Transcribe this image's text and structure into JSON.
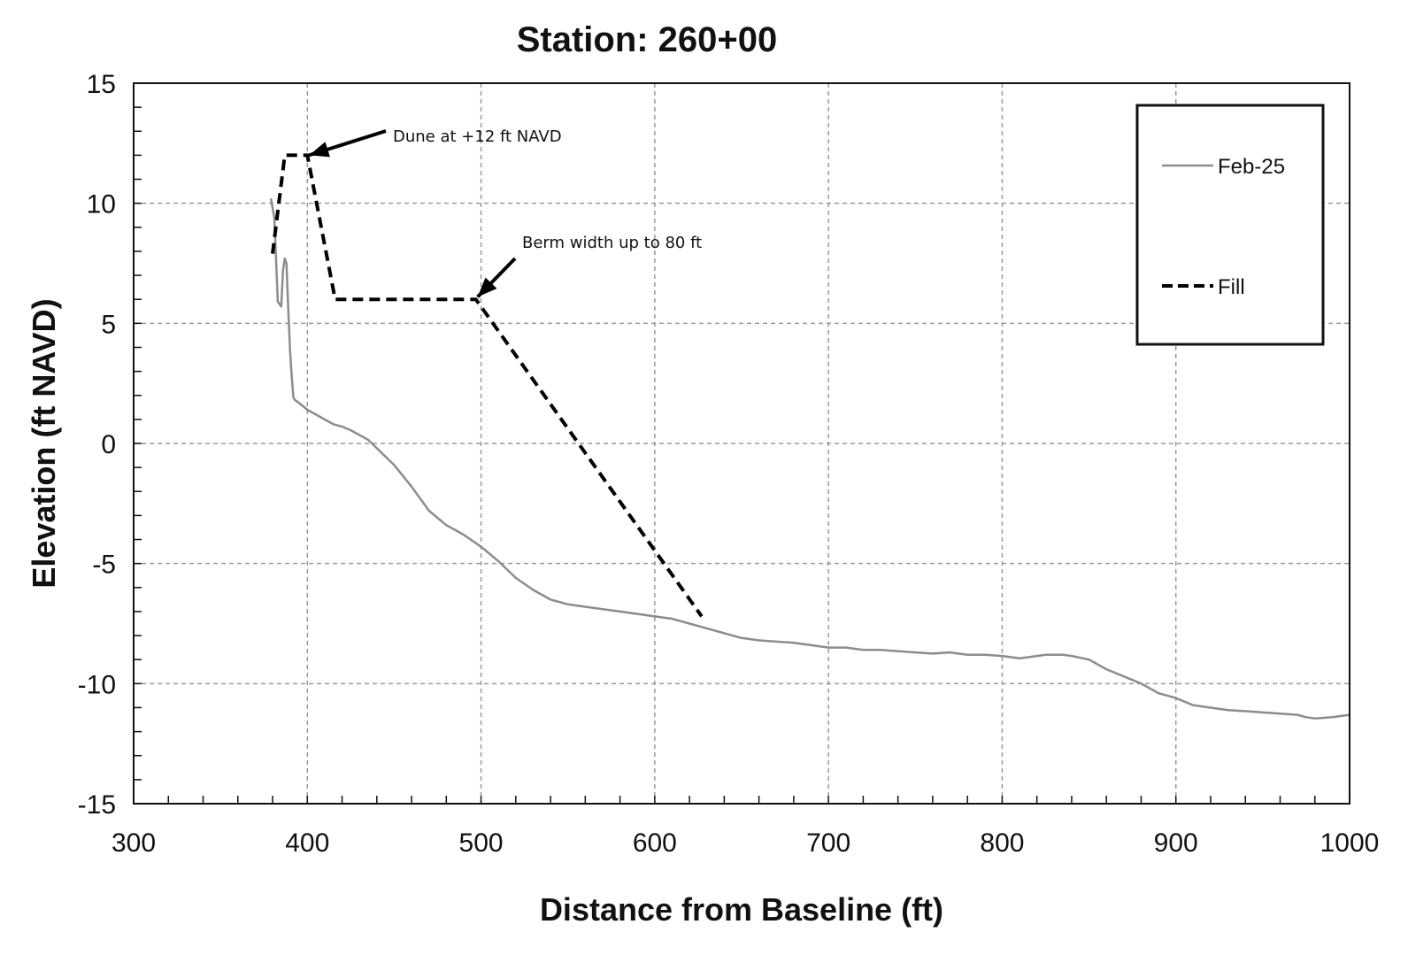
{
  "chart_data": {
    "type": "line",
    "title": "Station: 260+00",
    "xlabel": "Distance from Baseline (ft)",
    "ylabel": "Elevation (ft NAVD)",
    "xlim": [
      300,
      1000
    ],
    "ylim": [
      -15,
      15
    ],
    "x_ticks": [
      300,
      400,
      500,
      600,
      700,
      800,
      900,
      1000
    ],
    "y_ticks": [
      -15,
      -10,
      -5,
      0,
      5,
      10,
      15
    ],
    "x_tick_labels": [
      "300",
      "400",
      "500",
      "600",
      "700",
      "800",
      "900",
      "1000"
    ],
    "y_tick_labels": [
      "-15",
      "-10",
      "-5",
      "0",
      "5",
      "10",
      "15"
    ],
    "grid": true,
    "legend_position": "top-right",
    "series": [
      {
        "name": "Feb-25",
        "color": "#8c8c8c",
        "style": "solid",
        "x": [
          379,
          381,
          383,
          385,
          386,
          387,
          388,
          389,
          390,
          391,
          392,
          393,
          395,
          400,
          405,
          410,
          415,
          420,
          425,
          430,
          435,
          440,
          450,
          460,
          470,
          480,
          490,
          500,
          510,
          520,
          530,
          540,
          550,
          560,
          570,
          580,
          590,
          600,
          610,
          620,
          630,
          640,
          650,
          660,
          670,
          680,
          690,
          700,
          710,
          720,
          730,
          740,
          750,
          760,
          770,
          780,
          790,
          800,
          810,
          815,
          820,
          825,
          830,
          835,
          840,
          850,
          860,
          870,
          880,
          890,
          900,
          910,
          920,
          930,
          940,
          950,
          960,
          970,
          975,
          980,
          990,
          1000
        ],
        "y": [
          10.2,
          9.4,
          5.9,
          5.7,
          7.2,
          7.7,
          7.5,
          5.6,
          3.9,
          2.8,
          1.9,
          1.8,
          1.7,
          1.4,
          1.2,
          1.0,
          0.8,
          0.7,
          0.55,
          0.35,
          0.15,
          -0.2,
          -0.9,
          -1.8,
          -2.8,
          -3.4,
          -3.8,
          -4.3,
          -4.9,
          -5.6,
          -6.1,
          -6.5,
          -6.7,
          -6.8,
          -6.9,
          -7.0,
          -7.1,
          -7.2,
          -7.3,
          -7.5,
          -7.7,
          -7.9,
          -8.1,
          -8.2,
          -8.25,
          -8.3,
          -8.4,
          -8.5,
          -8.5,
          -8.6,
          -8.6,
          -8.65,
          -8.7,
          -8.75,
          -8.7,
          -8.8,
          -8.8,
          -8.85,
          -8.95,
          -8.9,
          -8.85,
          -8.8,
          -8.8,
          -8.8,
          -8.85,
          -9.0,
          -9.4,
          -9.7,
          -10.0,
          -10.4,
          -10.6,
          -10.9,
          -11.0,
          -11.1,
          -11.15,
          -11.2,
          -11.25,
          -11.3,
          -11.4,
          -11.45,
          -11.4,
          -11.3
        ]
      },
      {
        "name": "Fill",
        "color": "#000000",
        "style": "dashed",
        "x": [
          380,
          387,
          400,
          416,
          497,
          627
        ],
        "y": [
          7.9,
          12.0,
          12.0,
          6.0,
          6.0,
          -7.2
        ]
      }
    ],
    "annotations": [
      {
        "text": "Dune at +12 ft NAVD",
        "target": {
          "x": 401,
          "y": 12.0
        }
      },
      {
        "text": "Berm width up to 80 ft",
        "target": {
          "x": 498,
          "y": 6.1
        }
      }
    ]
  }
}
